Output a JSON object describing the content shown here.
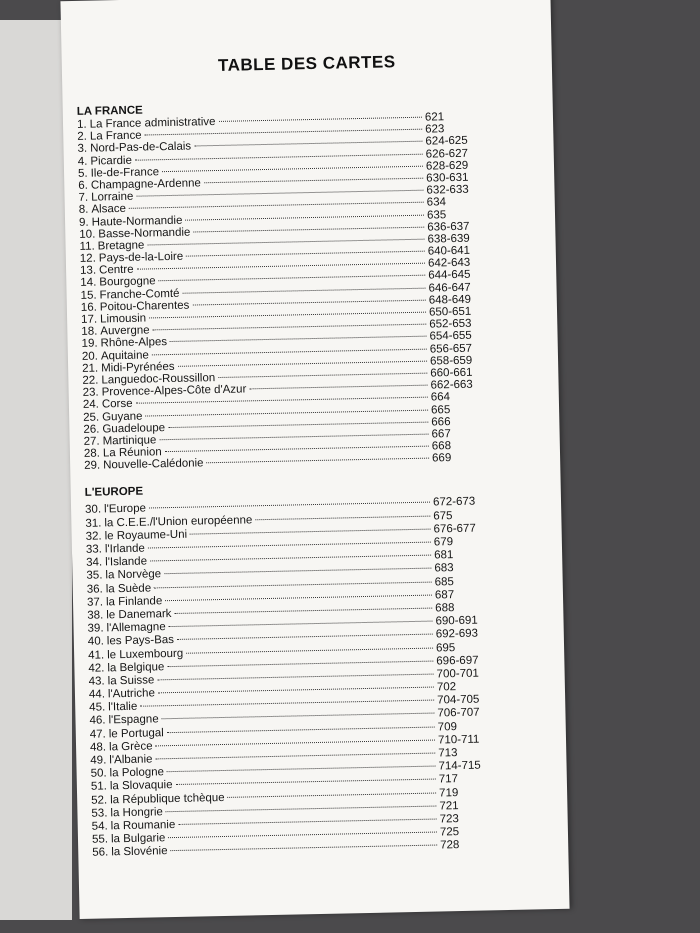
{
  "title": "TABLE DES CARTES",
  "sections": [
    {
      "heading": "LA FRANCE",
      "entries": [
        {
          "number": "1.",
          "name": "La France administrative",
          "page": "621"
        },
        {
          "number": "2.",
          "name": "La France",
          "page": "623"
        },
        {
          "number": "3.",
          "name": "Nord-Pas-de-Calais",
          "page": "624-625"
        },
        {
          "number": "4.",
          "name": "Picardie",
          "page": "626-627"
        },
        {
          "number": "5.",
          "name": "Ile-de-France",
          "page": "628-629"
        },
        {
          "number": "6.",
          "name": "Champagne-Ardenne",
          "page": "630-631"
        },
        {
          "number": "7.",
          "name": "Lorraine",
          "page": "632-633"
        },
        {
          "number": "8.",
          "name": "Alsace",
          "page": "634"
        },
        {
          "number": "9.",
          "name": "Haute-Normandie",
          "page": "635"
        },
        {
          "number": "10.",
          "name": "Basse-Normandie",
          "page": "636-637"
        },
        {
          "number": "11.",
          "name": "Bretagne",
          "page": "638-639"
        },
        {
          "number": "12.",
          "name": "Pays-de-la-Loire",
          "page": "640-641"
        },
        {
          "number": "13.",
          "name": "Centre",
          "page": "642-643"
        },
        {
          "number": "14.",
          "name": "Bourgogne",
          "page": "644-645"
        },
        {
          "number": "15.",
          "name": "Franche-Comté",
          "page": "646-647"
        },
        {
          "number": "16.",
          "name": "Poitou-Charentes",
          "page": "648-649"
        },
        {
          "number": "17.",
          "name": "Limousin",
          "page": "650-651"
        },
        {
          "number": "18.",
          "name": "Auvergne",
          "page": "652-653"
        },
        {
          "number": "19.",
          "name": "Rhône-Alpes",
          "page": "654-655"
        },
        {
          "number": "20.",
          "name": "Aquitaine",
          "page": "656-657"
        },
        {
          "number": "21.",
          "name": "Midi-Pyrénées",
          "page": "658-659"
        },
        {
          "number": "22.",
          "name": "Languedoc-Roussillon",
          "page": "660-661"
        },
        {
          "number": "23.",
          "name": "Provence-Alpes-Côte d'Azur",
          "page": "662-663"
        },
        {
          "number": "24.",
          "name": "Corse",
          "page": "664"
        },
        {
          "number": "25.",
          "name": "Guyane",
          "page": "665"
        },
        {
          "number": "26.",
          "name": "Guadeloupe",
          "page": "666"
        },
        {
          "number": "27.",
          "name": "Martinique",
          "page": "667"
        },
        {
          "number": "28.",
          "name": "La Réunion",
          "page": "668"
        },
        {
          "number": "29.",
          "name": "Nouvelle-Calédonie",
          "page": "669"
        }
      ]
    },
    {
      "heading": "L'EUROPE",
      "entries": [
        {
          "number": "30.",
          "name": "l'Europe",
          "page": "672-673"
        },
        {
          "number": "31.",
          "name": "la C.E.E./l'Union européenne",
          "page": "675"
        },
        {
          "number": "32.",
          "name": "le Royaume-Uni",
          "page": "676-677"
        },
        {
          "number": "33.",
          "name": "l'Irlande",
          "page": "679"
        },
        {
          "number": "34.",
          "name": "l'Islande",
          "page": "681"
        },
        {
          "number": "35.",
          "name": "la Norvège",
          "page": "683"
        },
        {
          "number": "36.",
          "name": "la Suède",
          "page": "685"
        },
        {
          "number": "37.",
          "name": "la Finlande",
          "page": "687"
        },
        {
          "number": "38.",
          "name": "le Danemark",
          "page": "688"
        },
        {
          "number": "39.",
          "name": "l'Allemagne",
          "page": "690-691"
        },
        {
          "number": "40.",
          "name": "les Pays-Bas",
          "page": "692-693"
        },
        {
          "number": "41.",
          "name": "le Luxembourg",
          "page": "695"
        },
        {
          "number": "42.",
          "name": "la Belgique",
          "page": "696-697"
        },
        {
          "number": "43.",
          "name": "la Suisse",
          "page": "700-701"
        },
        {
          "number": "44.",
          "name": "l'Autriche",
          "page": "702"
        },
        {
          "number": "45.",
          "name": "l'Italie",
          "page": "704-705"
        },
        {
          "number": "46.",
          "name": "l'Espagne",
          "page": "706-707"
        },
        {
          "number": "47.",
          "name": "le Portugal",
          "page": "709"
        },
        {
          "number": "48.",
          "name": "la Grèce",
          "page": "710-711"
        },
        {
          "number": "49.",
          "name": "l'Albanie",
          "page": "713"
        },
        {
          "number": "50.",
          "name": "la Pologne",
          "page": "714-715"
        },
        {
          "number": "51.",
          "name": "la Slovaquie",
          "page": "717"
        },
        {
          "number": "52.",
          "name": "la République tchèque",
          "page": "719"
        },
        {
          "number": "53.",
          "name": "la Hongrie",
          "page": "721"
        },
        {
          "number": "54.",
          "name": "la Roumanie",
          "page": "723"
        },
        {
          "number": "55.",
          "name": "la Bulgarie",
          "page": "725"
        },
        {
          "number": "56.",
          "name": "la Slovénie",
          "page": "728"
        }
      ]
    }
  ]
}
